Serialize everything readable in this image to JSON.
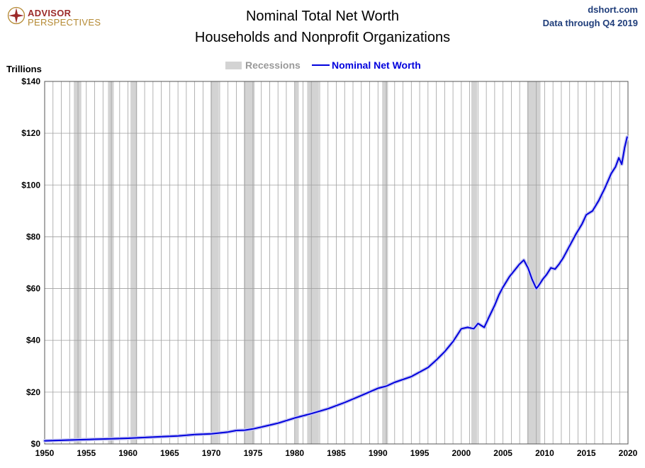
{
  "header": {
    "title_line1": "Nominal Total Net Worth",
    "title_line2": "Households and Nonprofit Organizations",
    "source": "dshort.com",
    "data_through": "Data through Q4 2019"
  },
  "logo": {
    "line1": "ADVISOR",
    "line2": "PERSPECTIVES"
  },
  "colors": {
    "line": "#0000dd",
    "recession": "#d3d3d3",
    "grid": "#a0a0a0",
    "title_blue": "#1f3d7a",
    "logo_red": "#9c2a2a",
    "logo_gold": "#b58a34"
  },
  "chart_data": {
    "type": "line",
    "title": "Nominal Total Net Worth Households and Nonprofit Organizations",
    "ylabel": "Trillions",
    "xlim": [
      1950,
      2020
    ],
    "ylim": [
      0,
      140
    ],
    "y_ticks": [
      0,
      20,
      40,
      60,
      80,
      100,
      120,
      140
    ],
    "y_tick_labels": [
      "$0",
      "$20",
      "$40",
      "$60",
      "$80",
      "$100",
      "$120",
      "$140"
    ],
    "x_ticks": [
      1950,
      1955,
      1960,
      1965,
      1970,
      1975,
      1980,
      1985,
      1990,
      1995,
      2000,
      2005,
      2010,
      2015,
      2020
    ],
    "x_tick_labels": [
      "1950",
      "1955",
      "1960",
      "1965",
      "1970",
      "1975",
      "1980",
      "1985",
      "1990",
      "1995",
      "2000",
      "2005",
      "2010",
      "2015",
      "2020"
    ],
    "grid": "vertical lines every year, horizontal lines every $20T",
    "legend": {
      "placement": "top-center",
      "entries": [
        "Recessions",
        "Nominal Net Worth"
      ]
    },
    "recessions": [
      [
        1953.5,
        1954.4
      ],
      [
        1957.6,
        1958.3
      ],
      [
        1960.3,
        1961.1
      ],
      [
        1969.9,
        1970.9
      ],
      [
        1973.9,
        1975.2
      ],
      [
        1980.0,
        1980.5
      ],
      [
        1981.5,
        1982.9
      ],
      [
        1990.5,
        1991.2
      ],
      [
        2001.2,
        2001.9
      ],
      [
        2007.9,
        2009.5
      ]
    ],
    "series": [
      {
        "name": "Nominal Net Worth",
        "x": [
          1950,
          1952,
          1954,
          1956,
          1958,
          1960,
          1962,
          1964,
          1966,
          1968,
          1970,
          1972,
          1973,
          1974,
          1975,
          1976,
          1978,
          1980,
          1982,
          1984,
          1986,
          1988,
          1990,
          1991,
          1992,
          1994,
          1996,
          1997,
          1998,
          1999,
          2000,
          2000.75,
          2001.5,
          2002,
          2002.75,
          2003.25,
          2004,
          2004.5,
          2005,
          2005.75,
          2006.5,
          2007,
          2007.5,
          2008,
          2008.5,
          2009,
          2009.25,
          2009.75,
          2010.25,
          2010.75,
          2011.25,
          2011.75,
          2012.25,
          2013,
          2013.75,
          2014.5,
          2015,
          2015.75,
          2016.5,
          2017.25,
          2018,
          2018.5,
          2018.9,
          2019.25,
          2019.6,
          2019.9
        ],
        "y": [
          1.2,
          1.4,
          1.6,
          1.8,
          2.0,
          2.2,
          2.5,
          2.8,
          3.1,
          3.6,
          3.9,
          4.6,
          5.2,
          5.3,
          5.8,
          6.5,
          8.0,
          10.0,
          11.7,
          13.6,
          16.0,
          18.7,
          21.5,
          22.3,
          23.8,
          26.0,
          29.5,
          32.4,
          35.6,
          39.5,
          44.5,
          45.0,
          44.5,
          46.5,
          45.0,
          48.5,
          53.5,
          57.5,
          60.5,
          64.5,
          67.5,
          69.5,
          71.0,
          68.0,
          63.5,
          60.0,
          61.0,
          63.5,
          65.5,
          68.0,
          67.5,
          69.5,
          72.0,
          76.5,
          81.0,
          85.0,
          88.5,
          90.0,
          94.0,
          99.0,
          104.5,
          107.0,
          110.5,
          108.0,
          114.5,
          118.5
        ]
      }
    ]
  }
}
